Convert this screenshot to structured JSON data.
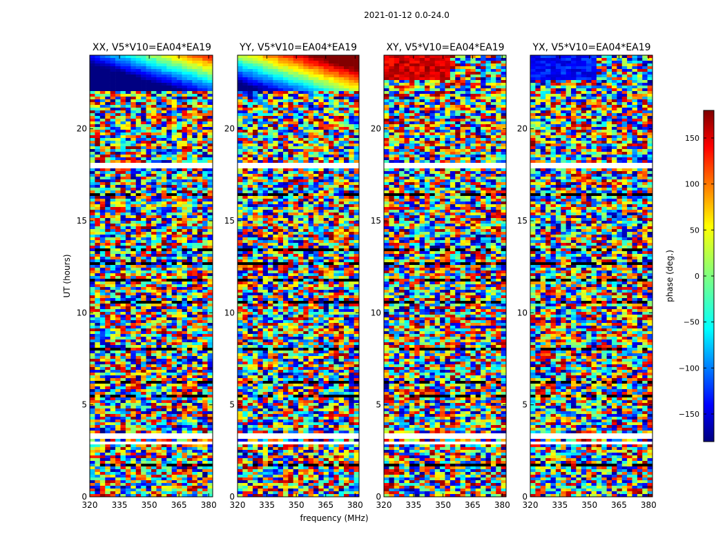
{
  "chart_data": {
    "type": "heatmap",
    "title": "2021-01-12 0.0-24.0",
    "xlabel": "frequency (MHz)",
    "ylabel": "UT (hours)",
    "xlim": [
      320,
      382
    ],
    "ylim": [
      0,
      24
    ],
    "x_ticks": [
      "320",
      "335",
      "350",
      "365",
      "380"
    ],
    "x_tick_values": [
      320,
      335,
      350,
      365,
      380
    ],
    "y_ticks": [
      "0",
      "5",
      "10",
      "15",
      "20"
    ],
    "y_tick_values": [
      0,
      5,
      10,
      15,
      20
    ],
    "colorbar": {
      "label": "phase (deg.)",
      "range": [
        -180,
        180
      ],
      "ticks": [
        "150",
        "100",
        "50",
        "0",
        "−50",
        "−100",
        "−150"
      ],
      "tick_values": [
        150,
        100,
        50,
        0,
        -50,
        -100,
        -150
      ],
      "colormap": "jet"
    },
    "panels": [
      {
        "title": "XX, V5*V10=EA04*EA19",
        "pattern": "gradient-blue-red",
        "base_phase": -120
      },
      {
        "title": "YY, V5*V10=EA04*EA19",
        "pattern": "gradient-cyan-orange",
        "base_phase": 20
      },
      {
        "title": "XY, V5*V10=EA04*EA19",
        "pattern": "noisy-red-blue",
        "base_phase": 150
      },
      {
        "title": "YX, V5*V10=EA04*EA19",
        "pattern": "noisy-blue-red",
        "base_phase": -130
      }
    ],
    "flagged_time_ranges_hours": [
      [
        2.85,
        3.0
      ],
      [
        3.15,
        3.25
      ],
      [
        3.35,
        3.42
      ],
      [
        17.9,
        18.15
      ],
      [
        16.02,
        16.1
      ],
      [
        19.45,
        19.5
      ],
      [
        20.2,
        20.25
      ],
      [
        21.55,
        21.65
      ],
      [
        22.0,
        22.1
      ],
      [
        22.75,
        22.85
      ]
    ],
    "dark_band_ranges_hours": [
      [
        0.25,
        0.35
      ],
      [
        1.7,
        1.78
      ],
      [
        5.45,
        5.5
      ],
      [
        6.2,
        6.28
      ],
      [
        7.3,
        7.36
      ],
      [
        8.0,
        8.08
      ],
      [
        10.55,
        10.62
      ],
      [
        10.95,
        11.0
      ],
      [
        11.7,
        11.78
      ],
      [
        12.65,
        12.7
      ],
      [
        13.4,
        13.46
      ],
      [
        14.25,
        14.3
      ],
      [
        15.4,
        15.46
      ],
      [
        16.4,
        16.46
      ],
      [
        17.1,
        17.16
      ]
    ]
  }
}
